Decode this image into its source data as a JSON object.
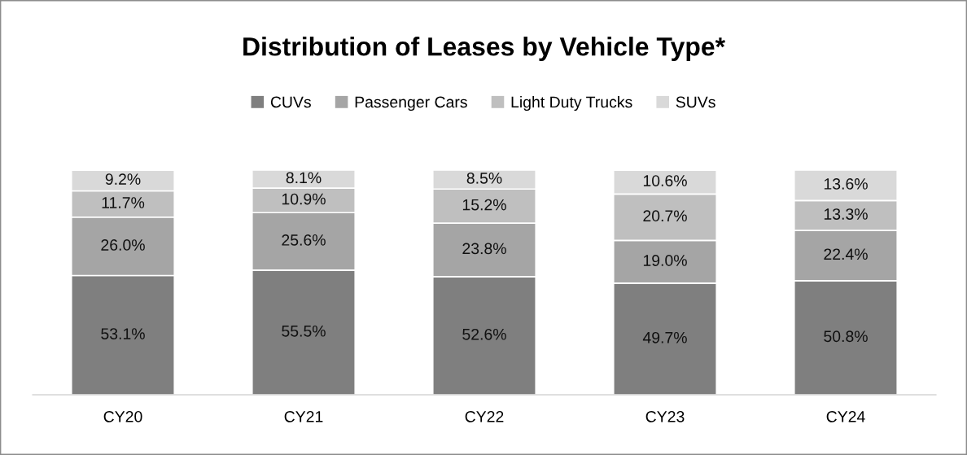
{
  "chart_data": {
    "type": "bar",
    "title": "Distribution of Leases by Vehicle Type*",
    "stacked": true,
    "legend": "top",
    "grid": false,
    "categories": [
      "CY20",
      "CY21",
      "CY22",
      "CY23",
      "CY24"
    ],
    "series": [
      {
        "name": "CUVs",
        "color": "#7f7f7f",
        "values": [
          53.1,
          55.5,
          52.6,
          49.7,
          50.8
        ],
        "value_labels": [
          "53.1%",
          "55.5%",
          "52.6%",
          "49.7%",
          "50.8%"
        ]
      },
      {
        "name": "Passenger Cars",
        "color": "#a5a5a5",
        "values": [
          26.0,
          25.6,
          23.8,
          19.0,
          22.4
        ],
        "value_labels": [
          "26.0%",
          "25.6%",
          "23.8%",
          "19.0%",
          "22.4%"
        ]
      },
      {
        "name": "Light Duty Trucks",
        "color": "#bfbfbf",
        "values": [
          11.7,
          10.9,
          15.2,
          20.7,
          13.3
        ],
        "value_labels": [
          "11.7%",
          "10.9%",
          "15.2%",
          "20.7%",
          "13.3%"
        ]
      },
      {
        "name": "SUVs",
        "color": "#d9d9d9",
        "values": [
          9.2,
          8.1,
          8.5,
          10.6,
          13.6
        ],
        "value_labels": [
          "9.2%",
          "8.1%",
          "8.5%",
          "10.6%",
          "13.6%"
        ]
      }
    ],
    "tick_labels": "x"
  }
}
